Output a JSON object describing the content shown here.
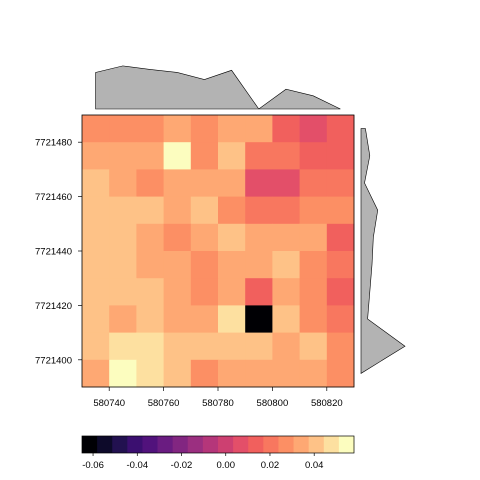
{
  "chart_data": {
    "type": "heatmap",
    "title": "",
    "xlabel": "",
    "ylabel": "",
    "x_ticks": [
      580740,
      580760,
      580780,
      580800,
      580820
    ],
    "y_ticks": [
      7721400,
      7721420,
      7721440,
      7721460,
      7721480
    ],
    "xlim": [
      580730,
      580830
    ],
    "ylim": [
      7721390,
      7721490
    ],
    "cell_size": 10,
    "x_centers": [
      580735,
      580745,
      580755,
      580765,
      580775,
      580785,
      580795,
      580805,
      580815,
      580825
    ],
    "y_centers": [
      7721485,
      7721475,
      7721465,
      7721455,
      7721445,
      7721435,
      7721425,
      7721415,
      7721405,
      7721395
    ],
    "values": [
      [
        0.024,
        0.024,
        0.024,
        0.032,
        0.024,
        0.032,
        0.032,
        0.012,
        0.006,
        0.012
      ],
      [
        0.032,
        0.032,
        0.032,
        0.052,
        0.024,
        0.04,
        0.018,
        0.018,
        0.012,
        0.012
      ],
      [
        0.04,
        0.032,
        0.024,
        0.032,
        0.032,
        0.032,
        0.008,
        0.008,
        0.018,
        0.018
      ],
      [
        0.04,
        0.04,
        0.04,
        0.032,
        0.04,
        0.024,
        0.018,
        0.018,
        0.024,
        0.024
      ],
      [
        0.04,
        0.04,
        0.032,
        0.024,
        0.032,
        0.04,
        0.032,
        0.032,
        0.032,
        0.012
      ],
      [
        0.04,
        0.04,
        0.032,
        0.032,
        0.024,
        0.032,
        0.032,
        0.04,
        0.024,
        0.018
      ],
      [
        0.04,
        0.04,
        0.04,
        0.032,
        0.024,
        0.032,
        0.012,
        0.032,
        0.024,
        0.012
      ],
      [
        0.04,
        0.032,
        0.04,
        0.032,
        0.032,
        0.048,
        -0.065,
        0.04,
        0.024,
        0.018
      ],
      [
        0.04,
        0.048,
        0.048,
        0.04,
        0.04,
        0.04,
        0.04,
        0.032,
        0.04,
        0.024
      ],
      [
        0.032,
        0.058,
        0.048,
        0.04,
        0.024,
        0.032,
        0.032,
        0.032,
        0.032,
        0.024
      ]
    ],
    "top_marginal": [
      {
        "x": 580735,
        "v": 0.83
      },
      {
        "x": 580745,
        "v": 0.98
      },
      {
        "x": 580755,
        "v": 0.9
      },
      {
        "x": 580765,
        "v": 0.83
      },
      {
        "x": 580775,
        "v": 0.67
      },
      {
        "x": 580785,
        "v": 0.88
      },
      {
        "x": 580795,
        "v": 0.0
      },
      {
        "x": 580805,
        "v": 0.45
      },
      {
        "x": 580815,
        "v": 0.3
      },
      {
        "x": 580825,
        "v": 0.0
      }
    ],
    "right_marginal": [
      {
        "y": 7721485,
        "v": 0.1
      },
      {
        "y": 7721475,
        "v": 0.2
      },
      {
        "y": 7721465,
        "v": 0.08
      },
      {
        "y": 7721455,
        "v": 0.38
      },
      {
        "y": 7721445,
        "v": 0.28
      },
      {
        "y": 7721435,
        "v": 0.25
      },
      {
        "y": 7721425,
        "v": 0.2
      },
      {
        "y": 7721415,
        "v": 0.15
      },
      {
        "y": 7721405,
        "v": 1.0
      },
      {
        "y": 7721395,
        "v": 0.0
      }
    ],
    "colorbar": {
      "min": -0.065,
      "max": 0.058,
      "ticks": [
        -0.06,
        -0.04,
        -0.02,
        0.0,
        0.02,
        0.04
      ],
      "tick_labels": [
        "-0.06",
        "-0.04",
        "-0.02",
        "0.00",
        "0.02",
        "0.04"
      ],
      "colors": [
        "#000004",
        "#0d0a2a",
        "#221150",
        "#3b0f70",
        "#51127c",
        "#6a1c81",
        "#822681",
        "#9b2f80",
        "#b5367a",
        "#cd4071",
        "#e34f69",
        "#f1605d",
        "#f8775f",
        "#fc8f64",
        "#fea873",
        "#fec287",
        "#fde0a0",
        "#fcfdbf"
      ]
    }
  }
}
